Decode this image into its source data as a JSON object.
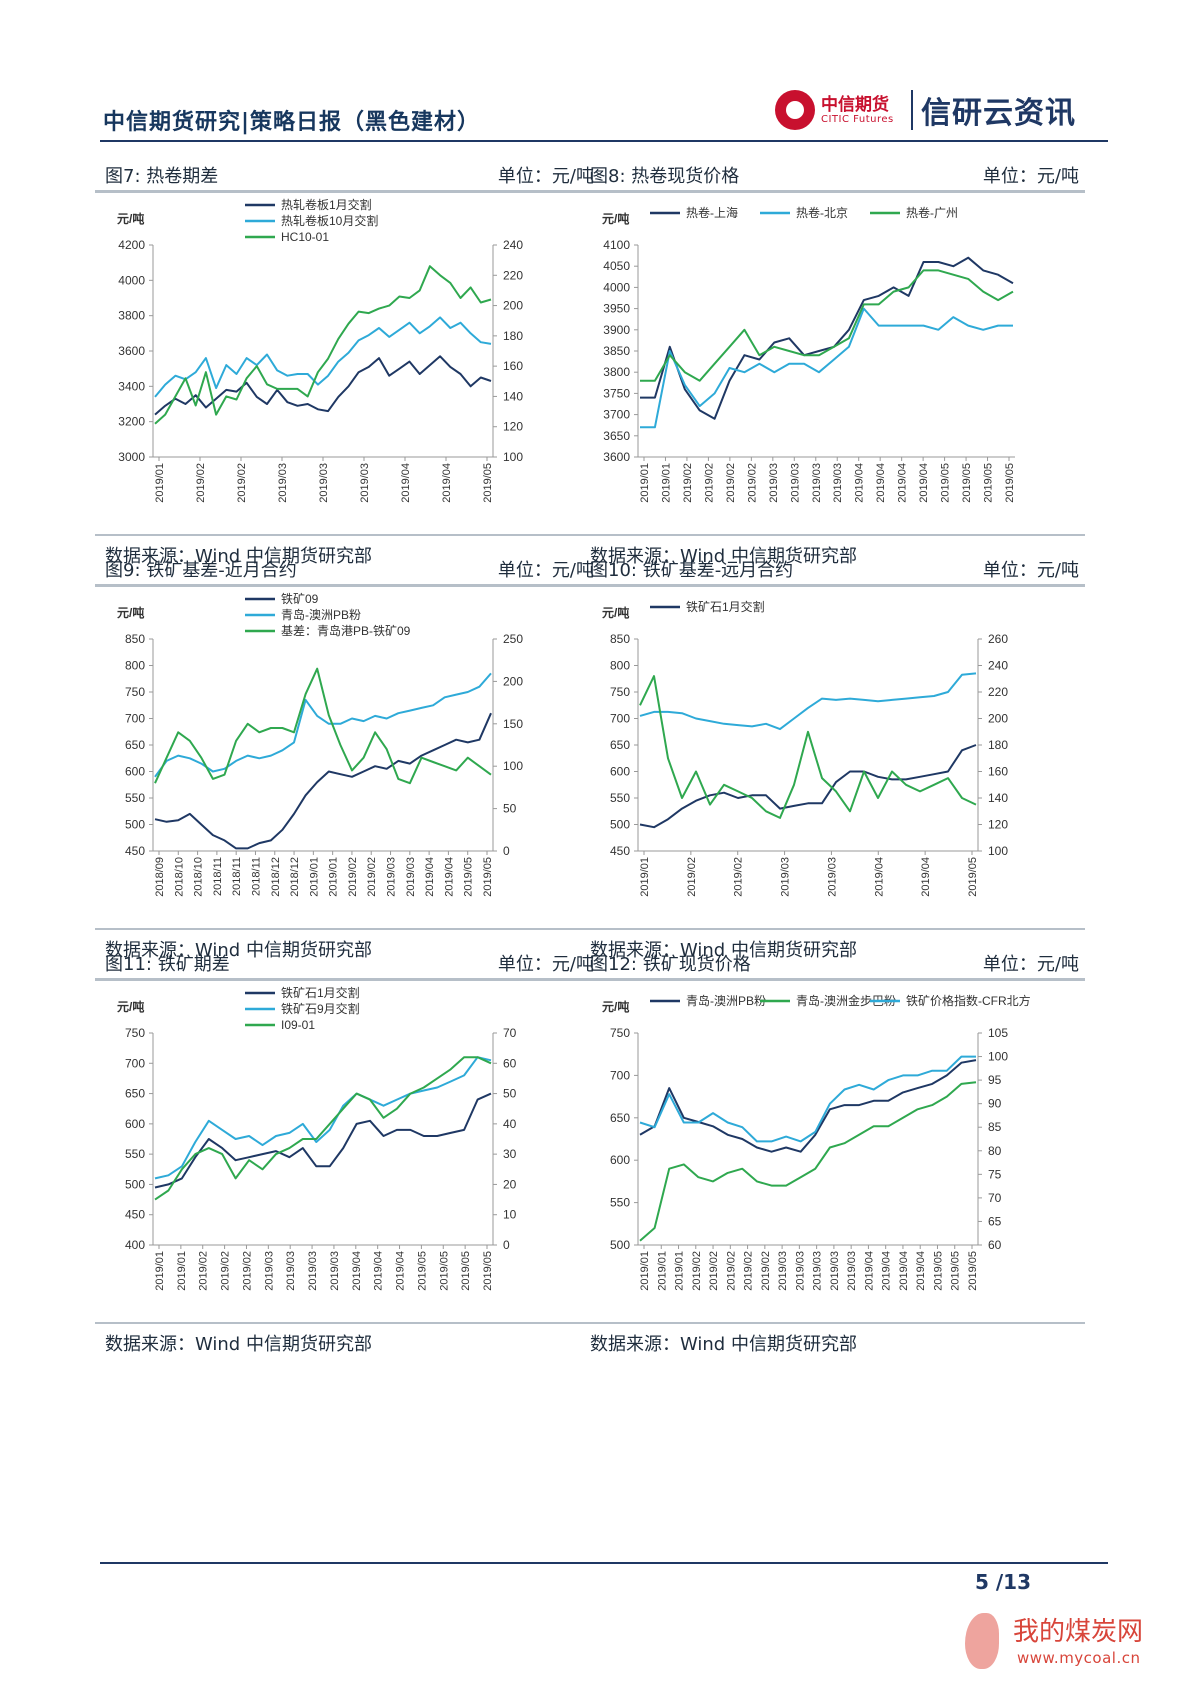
{
  "header": {
    "title": "中信期货研究|策略日报（黑色建材）"
  },
  "logo": {
    "company_cn": "中信期货",
    "company_en": "CITIC Futures",
    "brand": "信研云资讯"
  },
  "footer": {
    "page": "5 /13"
  },
  "watermark": {
    "cn": "我的煤炭网",
    "url": "www.mycoal.cn"
  },
  "charts": [
    {
      "title": "图7: 热卷期差",
      "unit": "单位：元/吨",
      "source": "数据来源：Wind 中信期货研究部"
    },
    {
      "title": "图8: 热卷现货价格",
      "unit": "单位：元/吨",
      "source": "数据来源：Wind 中信期货研究部"
    },
    {
      "title": "图9: 铁矿基差-近月合约",
      "unit": "单位：元/吨",
      "source": "数据来源：Wind 中信期货研究部"
    },
    {
      "title": "图10: 铁矿基差-远月合约",
      "unit": "单位：元/吨",
      "source": "数据来源：Wind 中信期货研究部"
    },
    {
      "title": "图11: 铁矿期差",
      "unit": "单位：元/吨",
      "source": "数据来源：Wind 中信期货研究部"
    },
    {
      "title": "图12: 铁矿现货价格",
      "unit": "单位：元/吨",
      "source": "数据来源：Wind 中信期货研究部"
    }
  ],
  "chart_data": [
    {
      "type": "line",
      "title": "图7: 热卷期差",
      "ylabel": "元/吨",
      "legend": "top-left",
      "xticks": [
        "2019/01",
        "2019/02",
        "2019/02",
        "2019/03",
        "2019/03",
        "2019/03",
        "2019/04",
        "2019/04",
        "2019/05"
      ],
      "ylim": [
        3000,
        4200
      ],
      "yticks": [
        3000,
        3200,
        3400,
        3600,
        3800,
        4000,
        4200
      ],
      "y2lim": [
        100,
        240
      ],
      "y2ticks": [
        100,
        120,
        140,
        160,
        180,
        200,
        220,
        240
      ],
      "series": [
        {
          "name": "热轧卷板1月交割",
          "color": "#1f3864",
          "axis": "left",
          "values": [
            3240,
            3290,
            3330,
            3300,
            3350,
            3280,
            3330,
            3380,
            3370,
            3420,
            3340,
            3300,
            3380,
            3310,
            3290,
            3300,
            3270,
            3260,
            3340,
            3400,
            3480,
            3510,
            3560,
            3460,
            3500,
            3540,
            3470,
            3520,
            3570,
            3510,
            3470,
            3400,
            3450,
            3430
          ]
        },
        {
          "name": "热轧卷板10月交割",
          "color": "#2eaad8",
          "axis": "left",
          "values": [
            3340,
            3410,
            3460,
            3440,
            3480,
            3560,
            3390,
            3520,
            3470,
            3560,
            3520,
            3580,
            3490,
            3460,
            3470,
            3470,
            3410,
            3460,
            3540,
            3590,
            3660,
            3690,
            3730,
            3680,
            3720,
            3760,
            3700,
            3740,
            3790,
            3730,
            3760,
            3700,
            3650,
            3640
          ]
        },
        {
          "name": "HC10-01",
          "color": "#2fa84f",
          "axis": "right",
          "values": [
            122,
            128,
            140,
            152,
            134,
            156,
            128,
            140,
            138,
            152,
            160,
            148,
            145,
            145,
            145,
            140,
            156,
            165,
            178,
            188,
            196,
            195,
            198,
            200,
            206,
            205,
            210,
            226,
            220,
            215,
            205,
            212,
            202,
            204
          ]
        }
      ]
    },
    {
      "type": "line",
      "title": "图8: 热卷现货价格",
      "ylabel": "元/吨",
      "legend": "top",
      "xticks": [
        "2019/01",
        "2019/01",
        "2019/02",
        "2019/02",
        "2019/02",
        "2019/02",
        "2019/03",
        "2019/03",
        "2019/03",
        "2019/03",
        "2019/04",
        "2019/04",
        "2019/04",
        "2019/04",
        "2019/05",
        "2019/05",
        "2019/05",
        "2019/05"
      ],
      "ylim": [
        3600,
        4100
      ],
      "yticks": [
        3600,
        3650,
        3700,
        3750,
        3800,
        3850,
        3900,
        3950,
        4000,
        4050,
        4100
      ],
      "series": [
        {
          "name": "热卷-上海",
          "color": "#1f3864",
          "values": [
            3740,
            3740,
            3860,
            3760,
            3710,
            3690,
            3780,
            3840,
            3830,
            3870,
            3880,
            3840,
            3850,
            3860,
            3900,
            3970,
            3980,
            4000,
            3980,
            4060,
            4060,
            4050,
            4070,
            4040,
            4030,
            4010
          ]
        },
        {
          "name": "热卷-北京",
          "color": "#2eaad8",
          "values": [
            3670,
            3670,
            3850,
            3770,
            3720,
            3750,
            3810,
            3800,
            3820,
            3800,
            3820,
            3820,
            3800,
            3830,
            3860,
            3950,
            3910,
            3910,
            3910,
            3910,
            3900,
            3930,
            3910,
            3900,
            3910,
            3910
          ]
        },
        {
          "name": "热卷-广州",
          "color": "#2fa84f",
          "values": [
            3780,
            3780,
            3840,
            3800,
            3780,
            3820,
            3860,
            3900,
            3840,
            3860,
            3850,
            3840,
            3840,
            3860,
            3880,
            3960,
            3960,
            3990,
            4000,
            4040,
            4040,
            4030,
            4020,
            3990,
            3970,
            3990
          ]
        }
      ]
    },
    {
      "type": "line",
      "title": "图9: 铁矿基差-近月合约",
      "ylabel": "元/吨",
      "legend": "top-left",
      "xticks": [
        "2018/09",
        "2018/10",
        "2018/10",
        "2018/11",
        "2018/11",
        "2018/11",
        "2018/12",
        "2018/12",
        "2019/01",
        "2019/01",
        "2019/02",
        "2019/02",
        "2019/03",
        "2019/03",
        "2019/04",
        "2019/04",
        "2019/05",
        "2019/05"
      ],
      "ylim": [
        450,
        850
      ],
      "yticks": [
        450,
        500,
        550,
        600,
        650,
        700,
        750,
        800,
        850
      ],
      "y2lim": [
        0,
        250
      ],
      "y2ticks": [
        0,
        50,
        100,
        150,
        200,
        250
      ],
      "series": [
        {
          "name": "铁矿09",
          "color": "#1f3864",
          "axis": "left",
          "values": [
            510,
            505,
            508,
            520,
            500,
            480,
            470,
            455,
            455,
            465,
            470,
            490,
            520,
            555,
            580,
            600,
            595,
            590,
            600,
            610,
            605,
            620,
            615,
            630,
            640,
            650,
            660,
            655,
            660,
            710
          ]
        },
        {
          "name": "青岛-澳洲PB粉",
          "color": "#2eaad8",
          "axis": "left",
          "values": [
            590,
            620,
            630,
            625,
            615,
            600,
            605,
            620,
            630,
            625,
            630,
            640,
            655,
            735,
            705,
            690,
            690,
            700,
            695,
            705,
            700,
            710,
            715,
            720,
            725,
            740,
            745,
            750,
            760,
            785
          ]
        },
        {
          "name": "基差：青岛港PB-铁矿09",
          "color": "#2fa84f",
          "axis": "right",
          "values": [
            80,
            110,
            140,
            130,
            110,
            85,
            90,
            130,
            150,
            140,
            145,
            145,
            140,
            185,
            215,
            160,
            125,
            95,
            110,
            140,
            120,
            85,
            80,
            110,
            105,
            100,
            95,
            110,
            100,
            90
          ]
        }
      ]
    },
    {
      "type": "line",
      "title": "图10: 铁矿基差-远月合约",
      "ylabel": "元/吨",
      "legend": "top",
      "xticks": [
        "2019/01",
        "2019/02",
        "2019/02",
        "2019/03",
        "2019/03",
        "2019/04",
        "2019/04",
        "2019/05"
      ],
      "ylim": [
        450,
        850
      ],
      "yticks": [
        450,
        500,
        550,
        600,
        650,
        700,
        750,
        800,
        850
      ],
      "y2lim": [
        100,
        260
      ],
      "y2ticks": [
        100,
        120,
        140,
        160,
        180,
        200,
        220,
        240,
        260
      ],
      "series": [
        {
          "name": "铁矿石1月交割",
          "color": "#1f3864",
          "axis": "left",
          "values": [
            500,
            495,
            510,
            530,
            545,
            555,
            560,
            550,
            555,
            555,
            530,
            535,
            540,
            540,
            580,
            600,
            600,
            590,
            585,
            585,
            590,
            595,
            600,
            640,
            650
          ]
        },
        {
          "name": "",
          "color": "#2eaad8",
          "axis": "right",
          "values": [
            202,
            205,
            205,
            204,
            200,
            198,
            196,
            195,
            194,
            196,
            192,
            200,
            208,
            215,
            214,
            215,
            214,
            213,
            214,
            215,
            216,
            217,
            220,
            233,
            234
          ]
        },
        {
          "name": "",
          "color": "#2fa84f",
          "axis": "right",
          "values": [
            210,
            232,
            170,
            140,
            160,
            135,
            150,
            145,
            140,
            130,
            125,
            150,
            190,
            155,
            145,
            130,
            160,
            140,
            160,
            150,
            145,
            150,
            155,
            140,
            135
          ]
        }
      ]
    },
    {
      "type": "line",
      "title": "图11: 铁矿期差",
      "ylabel": "元/吨",
      "legend": "top-left",
      "xticks": [
        "2019/01",
        "2019/01",
        "2019/02",
        "2019/02",
        "2019/02",
        "2019/03",
        "2019/03",
        "2019/03",
        "2019/03",
        "2019/04",
        "2019/04",
        "2019/04",
        "2019/05",
        "2019/05",
        "2019/05",
        "2019/05"
      ],
      "ylim": [
        400,
        750
      ],
      "yticks": [
        400,
        450,
        500,
        550,
        600,
        650,
        700,
        750
      ],
      "y2lim": [
        0,
        70
      ],
      "y2ticks": [
        0,
        10,
        20,
        30,
        40,
        50,
        60,
        70
      ],
      "series": [
        {
          "name": "铁矿石1月交割",
          "color": "#1f3864",
          "axis": "left",
          "values": [
            495,
            500,
            510,
            545,
            575,
            560,
            540,
            545,
            550,
            555,
            545,
            560,
            530,
            530,
            560,
            600,
            605,
            580,
            590,
            590,
            580,
            580,
            585,
            590,
            640,
            650
          ]
        },
        {
          "name": "铁矿石9月交割",
          "color": "#2eaad8",
          "axis": "left",
          "values": [
            510,
            515,
            530,
            570,
            605,
            590,
            575,
            580,
            565,
            580,
            585,
            600,
            570,
            590,
            630,
            650,
            640,
            630,
            640,
            650,
            655,
            660,
            670,
            680,
            710,
            705
          ]
        },
        {
          "name": "I09-01",
          "color": "#2fa84f",
          "axis": "right",
          "values": [
            15,
            18,
            25,
            30,
            32,
            30,
            22,
            28,
            25,
            30,
            32,
            35,
            35,
            40,
            45,
            50,
            48,
            42,
            45,
            50,
            52,
            55,
            58,
            62,
            62,
            60
          ]
        }
      ]
    },
    {
      "type": "line",
      "title": "图12: 铁矿现货价格",
      "ylabel": "元/吨",
      "legend": "top",
      "xticks": [
        "2019/01",
        "2019/01",
        "2019/01",
        "2019/02",
        "2019/02",
        "2019/02",
        "2019/02",
        "2019/02",
        "2019/03",
        "2019/03",
        "2019/03",
        "2019/03",
        "2019/03",
        "2019/04",
        "2019/04",
        "2019/04",
        "2019/04",
        "2019/05",
        "2019/05",
        "2019/05"
      ],
      "ylim": [
        500,
        750
      ],
      "yticks": [
        500,
        550,
        600,
        650,
        700,
        750
      ],
      "y2lim": [
        60,
        105
      ],
      "y2ticks": [
        60,
        65,
        70,
        75,
        80,
        85,
        90,
        95,
        100,
        105
      ],
      "series": [
        {
          "name": "青岛-澳洲PB粉",
          "color": "#1f3864",
          "axis": "left",
          "values": [
            630,
            640,
            685,
            650,
            645,
            640,
            630,
            625,
            615,
            610,
            615,
            610,
            630,
            660,
            665,
            665,
            670,
            670,
            680,
            685,
            690,
            700,
            715,
            718
          ]
        },
        {
          "name": "青岛-澳洲金步巴粉",
          "color": "#2fa84f",
          "axis": "left",
          "values": [
            505,
            520,
            590,
            595,
            580,
            575,
            585,
            590,
            575,
            570,
            570,
            580,
            590,
            615,
            620,
            630,
            640,
            640,
            650,
            660,
            665,
            675,
            690,
            692
          ]
        },
        {
          "name": "铁矿价格指数-CFR北方",
          "color": "#2eaad8",
          "axis": "right",
          "values": [
            86,
            85,
            92,
            86,
            86,
            88,
            86,
            85,
            82,
            82,
            83,
            82,
            84,
            90,
            93,
            94,
            93,
            95,
            96,
            96,
            97,
            97,
            100,
            100
          ]
        }
      ]
    }
  ]
}
